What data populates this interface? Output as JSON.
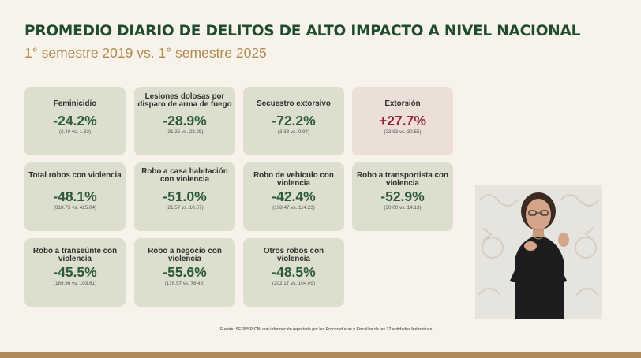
{
  "title": "PROMEDIO DIARIO DE DELITOS DE ALTO IMPACTO A NIVEL NACIONAL",
  "subtitle": "1° semestre 2019 vs. 1° semestre 2025",
  "colors": {
    "title": "#1f4b2f",
    "subtitle": "#b08a4f",
    "card_bg": "#dcdfce",
    "alert_bg": "#ecdfd8",
    "decrease": "#2e5a3c",
    "increase": "#9a2440"
  },
  "cards": [
    {
      "label": "Feminicidio",
      "value": "-24.2%",
      "detail": "(2.40 vs. 1.82)"
    },
    {
      "label": "Lesiones dolosas por disparo de arma de fuego",
      "value": "-28.9%",
      "detail": "(31.25 vs. 22.25)"
    },
    {
      "label": "Secuestro extorsivo",
      "value": "-72.2%",
      "detail": "(3.38 vs. 0.94)"
    },
    {
      "label": "Extorsión",
      "value": "+27.7%",
      "detail": "(23.93 vs. 30.55)"
    },
    {
      "label": "Total robos con violencia",
      "value": "-48.1%",
      "detail": "(818.75 vs. 425.04)"
    },
    {
      "label": "Robo a casa habitación con violencia",
      "value": "-51.0%",
      "detail": "(21.57 vs. 10.57)"
    },
    {
      "label": "Robo de vehículo con violencia",
      "value": "-42.4%",
      "detail": "(198.47 vs. 114.23)"
    },
    {
      "label": "Robo a transportista con violencia",
      "value": "-52.9%",
      "detail": "(30.00 vs. 14.13)"
    },
    {
      "label": "Robo a transeúnte con violencia",
      "value": "-45.5%",
      "detail": "(189.96 vs. 103.61)"
    },
    {
      "label": "Robo a negocio con violencia",
      "value": "-55.6%",
      "detail": "(176.57 vs. 78.40)"
    },
    {
      "label": "Otros robos con violencia",
      "value": "-48.5%",
      "detail": "(202.17 vs. 104.09)"
    }
  ],
  "source": "Fuente: SESNSP-CNI con información reportada por las Procuradurías y Fiscalías de las 32 entidades federativas"
}
